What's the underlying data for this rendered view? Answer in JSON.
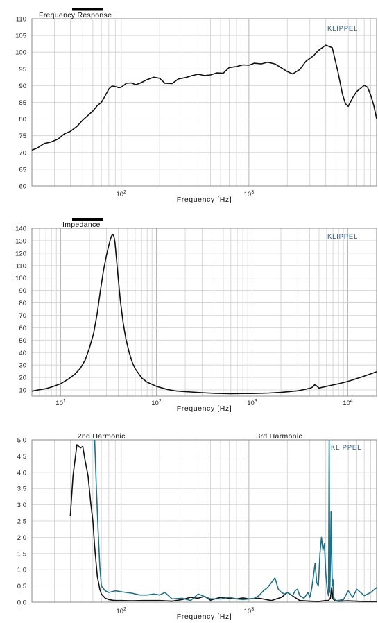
{
  "brand_label": "KLIPPEL",
  "colors": {
    "curve_black": "#111111",
    "curve_teal": "#1d7088",
    "grid": "#cfcfcf",
    "brand": "#2a5f8f"
  },
  "chart_data": [
    {
      "type": "line",
      "title": "Frequency Response",
      "xlabel": "Frequency  [Hz]",
      "ylabel": "",
      "x_scale": "log",
      "xlim": [
        20,
        10000
      ],
      "ylim": [
        60,
        110
      ],
      "y_ticks": [
        60,
        65,
        70,
        75,
        80,
        85,
        90,
        95,
        100,
        105,
        110
      ],
      "x_tick_labels": [
        {
          "base": "10",
          "exp": "2",
          "x": 100
        },
        {
          "base": "10",
          "exp": "3",
          "x": 1000
        }
      ],
      "series": [
        {
          "color": "#111111",
          "x": [
            20,
            22,
            25,
            28,
            32,
            36,
            40,
            45,
            50,
            55,
            60,
            65,
            70,
            75,
            80,
            85,
            90,
            95,
            100,
            110,
            120,
            130,
            140,
            160,
            180,
            200,
            220,
            250,
            280,
            320,
            360,
            400,
            450,
            500,
            560,
            630,
            700,
            800,
            900,
            1000,
            1100,
            1250,
            1400,
            1600,
            1800,
            2000,
            2200,
            2500,
            2800,
            3200,
            3500,
            4000,
            4500,
            5000,
            5400,
            5700,
            6000,
            6500,
            7000,
            7500,
            8000,
            8500,
            9000,
            9500,
            10000
          ],
          "y": [
            70.7,
            71.3,
            72.7,
            73.1,
            74.0,
            75.6,
            76.3,
            77.8,
            79.7,
            81.1,
            82.4,
            84.0,
            85.0,
            87.0,
            89.0,
            89.9,
            89.7,
            89.4,
            89.5,
            90.7,
            90.8,
            90.3,
            90.7,
            91.8,
            92.5,
            92.2,
            90.7,
            90.6,
            92.0,
            92.4,
            93.0,
            93.4,
            93.0,
            93.2,
            93.8,
            93.7,
            95.4,
            95.7,
            96.2,
            96.1,
            96.7,
            96.5,
            97.0,
            96.5,
            95.3,
            94.2,
            93.5,
            94.8,
            97.3,
            98.9,
            100.5,
            102.1,
            101.3,
            93.8,
            87.5,
            84.6,
            83.8,
            86.4,
            88.3,
            89.2,
            90.1,
            89.5,
            87.1,
            84.1,
            80.1
          ]
        }
      ]
    },
    {
      "type": "line",
      "title": "Impedance",
      "xlabel": "Frequency  [Hz]",
      "ylabel": "",
      "x_scale": "log",
      "xlim": [
        5,
        20000
      ],
      "ylim": [
        5,
        140
      ],
      "y_ticks": [
        10,
        20,
        30,
        40,
        50,
        60,
        70,
        80,
        90,
        100,
        110,
        120,
        130,
        140
      ],
      "x_tick_labels": [
        {
          "base": "10",
          "exp": "1",
          "x": 10
        },
        {
          "base": "10",
          "exp": "2",
          "x": 100
        },
        {
          "base": "10",
          "exp": "3",
          "x": 1000
        },
        {
          "base": "10",
          "exp": "4",
          "x": 10000
        }
      ],
      "series": [
        {
          "color": "#111111",
          "x": [
            5,
            6,
            7,
            8,
            10,
            12,
            14,
            16,
            18,
            20,
            22,
            24,
            26,
            28,
            30,
            32,
            33,
            34,
            35,
            36,
            37,
            38,
            40,
            42,
            45,
            48,
            52,
            56,
            60,
            70,
            80,
            100,
            130,
            160,
            200,
            300,
            400,
            600,
            800,
            1000,
            1500,
            2000,
            3000,
            4000,
            4300,
            4500,
            4700,
            5000,
            6000,
            8000,
            10000,
            14000,
            20000
          ],
          "y": [
            9.0,
            10.2,
            11.0,
            12.3,
            15.0,
            18.7,
            22.5,
            27.2,
            34.0,
            44.0,
            55.0,
            71.0,
            90.0,
            106.0,
            118.0,
            127.0,
            131.0,
            134.0,
            135.0,
            133.5,
            128.0,
            118.0,
            99.0,
            82.0,
            63.5,
            51.0,
            40.0,
            32.0,
            27.0,
            19.7,
            16.2,
            12.9,
            10.4,
            9.2,
            8.6,
            7.8,
            7.3,
            7.0,
            7.1,
            7.1,
            7.5,
            8.0,
            9.3,
            11.3,
            12.3,
            14.2,
            13.4,
            11.5,
            12.9,
            15.0,
            16.8,
            20.4,
            24.6
          ]
        }
      ]
    },
    {
      "type": "line",
      "title": "",
      "xlabel": "Frequency  [Hz]",
      "ylabel": "",
      "x_scale": "log",
      "xlim": [
        20,
        10000
      ],
      "ylim": [
        0,
        5
      ],
      "y_ticks": [
        "0,0",
        "0,5",
        "1,0",
        "1,5",
        "2,0",
        "2,5",
        "3,0",
        "3,5",
        "4,0",
        "4,5",
        "5,0"
      ],
      "x_tick_labels": [
        {
          "base": "10",
          "exp": "2",
          "x": 100
        },
        {
          "base": "10",
          "exp": "3",
          "x": 1000
        }
      ],
      "annotations": [
        {
          "text": "2nd Harmonic",
          "x": 70
        },
        {
          "text": "3rd Harmonic",
          "x": 1730
        }
      ],
      "series": [
        {
          "name": "2nd Harmonic",
          "color": "#111111",
          "x": [
            40,
            42,
            45,
            48,
            50,
            52,
            55,
            58,
            60,
            62,
            65,
            68,
            70,
            75,
            80,
            85,
            90,
            100,
            120,
            150,
            200,
            250,
            300,
            350,
            400,
            450,
            500,
            600,
            700,
            800,
            900,
            1000,
            1200,
            1500,
            1800,
            2000,
            2500,
            3000,
            3500,
            4000,
            4200,
            4350,
            4450,
            4550,
            4700,
            5000,
            6000,
            8000,
            10000
          ],
          "y": [
            2.65,
            3.9,
            4.85,
            4.75,
            4.8,
            4.4,
            3.9,
            3.0,
            2.5,
            1.7,
            0.8,
            0.4,
            0.25,
            0.12,
            0.08,
            0.06,
            0.05,
            0.05,
            0.04,
            0.05,
            0.05,
            0.03,
            0.08,
            0.15,
            0.12,
            0.18,
            0.06,
            0.15,
            0.12,
            0.1,
            0.13,
            0.1,
            0.12,
            0.05,
            0.15,
            0.3,
            0.05,
            0.03,
            0.02,
            0.05,
            0.05,
            0.12,
            0.45,
            0.1,
            0.05,
            0.03,
            0.04,
            0.02,
            0.02
          ]
        },
        {
          "name": "3rd Harmonic",
          "color": "#1d7088",
          "x": [
            62,
            64,
            66,
            68,
            70,
            75,
            80,
            90,
            100,
            110,
            120,
            140,
            160,
            180,
            200,
            220,
            250,
            300,
            350,
            400,
            500,
            600,
            700,
            800,
            900,
            1000,
            1100,
            1200,
            1300,
            1400,
            1500,
            1600,
            1700,
            1800,
            1900,
            2000,
            2100,
            2200,
            2300,
            2400,
            2500,
            2700,
            2900,
            3000,
            3100,
            3200,
            3300,
            3400,
            3500,
            3600,
            3700,
            3800,
            3900,
            4000,
            4100,
            4200,
            4250,
            4300,
            4350,
            4400,
            4450,
            4500,
            4550,
            4600,
            4650,
            4700,
            4800,
            5000,
            5500,
            6000,
            6500,
            7000,
            8000,
            9000,
            10000
          ],
          "y": [
            5.0,
            3.5,
            2.2,
            1.1,
            0.5,
            0.35,
            0.3,
            0.35,
            0.32,
            0.3,
            0.28,
            0.22,
            0.22,
            0.25,
            0.22,
            0.3,
            0.1,
            0.12,
            0.05,
            0.25,
            0.1,
            0.1,
            0.15,
            0.1,
            0.08,
            0.1,
            0.12,
            0.2,
            0.35,
            0.45,
            0.6,
            0.75,
            0.4,
            0.3,
            0.25,
            0.3,
            0.25,
            0.2,
            0.35,
            0.4,
            0.2,
            0.12,
            0.3,
            0.15,
            0.4,
            0.8,
            1.2,
            0.6,
            0.5,
            1.5,
            2.0,
            1.6,
            1.8,
            0.9,
            0.4,
            0.2,
            5.0,
            0.3,
            1.2,
            2.8,
            1.5,
            0.5,
            0.7,
            0.2,
            0.1,
            0.1,
            0.05,
            0.05,
            0.08,
            0.35,
            0.15,
            0.4,
            0.2,
            0.3,
            0.45
          ]
        }
      ]
    }
  ]
}
